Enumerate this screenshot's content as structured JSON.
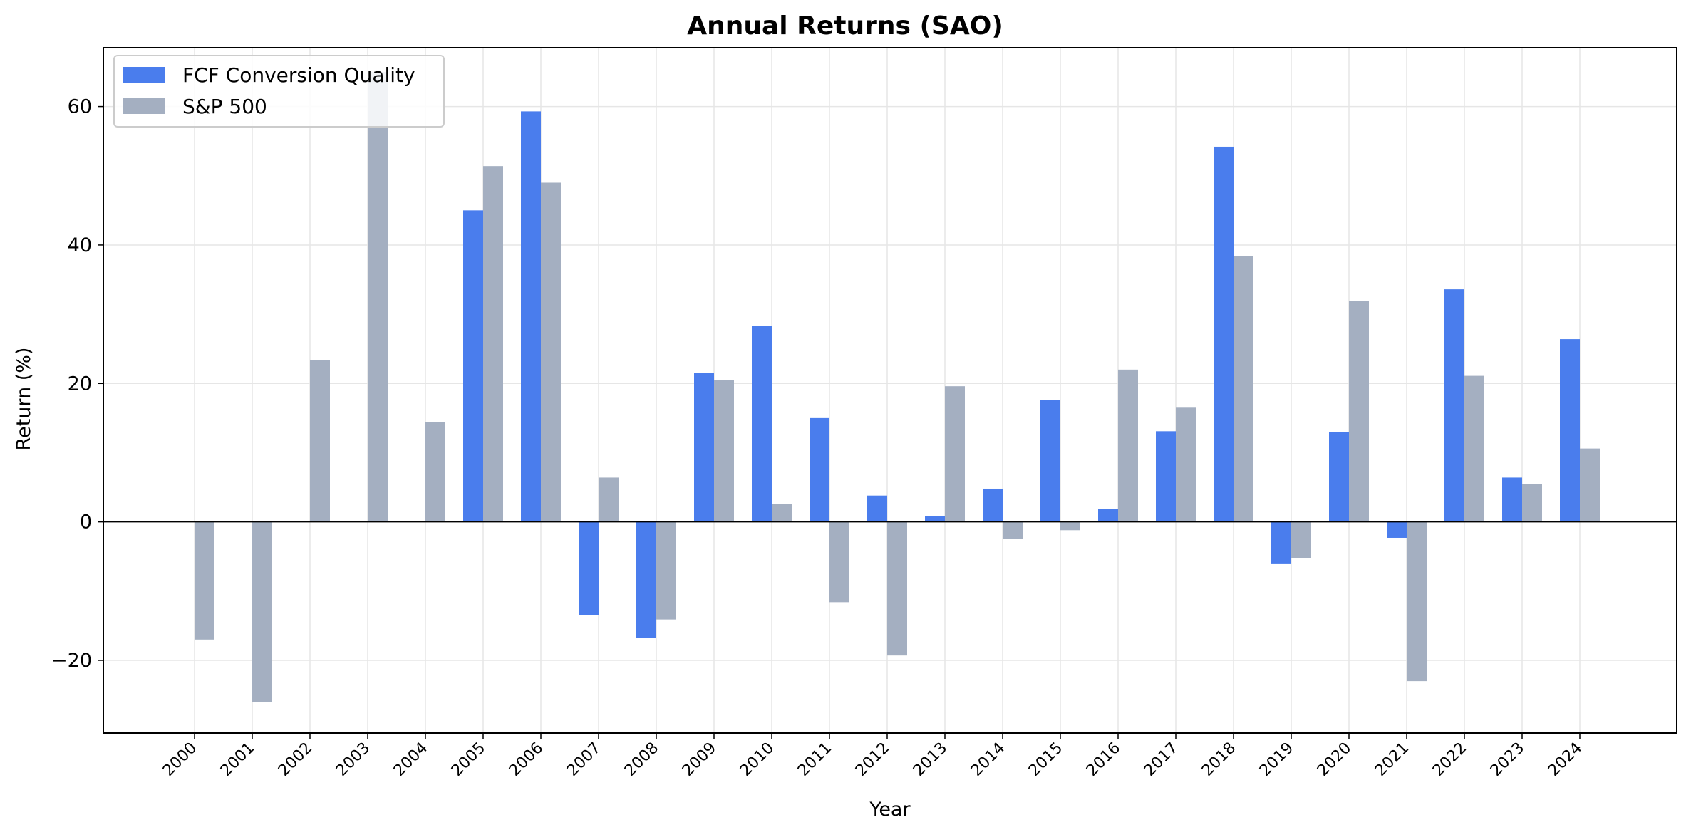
{
  "chart_data": {
    "type": "bar",
    "title": "Annual Returns (SAO)",
    "xlabel": "Year",
    "ylabel": "Return (%)",
    "categories": [
      "2000",
      "2001",
      "2002",
      "2003",
      "2004",
      "2005",
      "2006",
      "2007",
      "2008",
      "2009",
      "2010",
      "2011",
      "2012",
      "2013",
      "2014",
      "2015",
      "2016",
      "2017",
      "2018",
      "2019",
      "2020",
      "2021",
      "2022",
      "2023",
      "2024"
    ],
    "series": [
      {
        "name": "FCF Conversion Quality",
        "color": "#4a7ded",
        "values": [
          null,
          null,
          null,
          null,
          null,
          45.0,
          59.3,
          -13.5,
          -16.8,
          21.5,
          28.3,
          15.0,
          3.8,
          0.8,
          4.8,
          17.6,
          1.9,
          13.1,
          54.2,
          -6.1,
          13.0,
          -2.3,
          33.6,
          6.4,
          26.4
        ]
      },
      {
        "name": "S&P 500",
        "color": "#a4afc1",
        "values": [
          -17.0,
          -26.0,
          23.4,
          65.0,
          14.4,
          51.4,
          49.0,
          6.4,
          -14.1,
          20.5,
          2.6,
          -11.6,
          -19.3,
          19.6,
          -2.5,
          -1.2,
          22.0,
          16.5,
          38.4,
          -5.2,
          31.9,
          -23.0,
          21.1,
          5.5,
          10.6
        ]
      }
    ],
    "yticks": [
      -20,
      0,
      20,
      40,
      60
    ],
    "ylim": [
      -30.5,
      68.5
    ],
    "grid": true,
    "legend": "top-left",
    "zero_line": true
  }
}
